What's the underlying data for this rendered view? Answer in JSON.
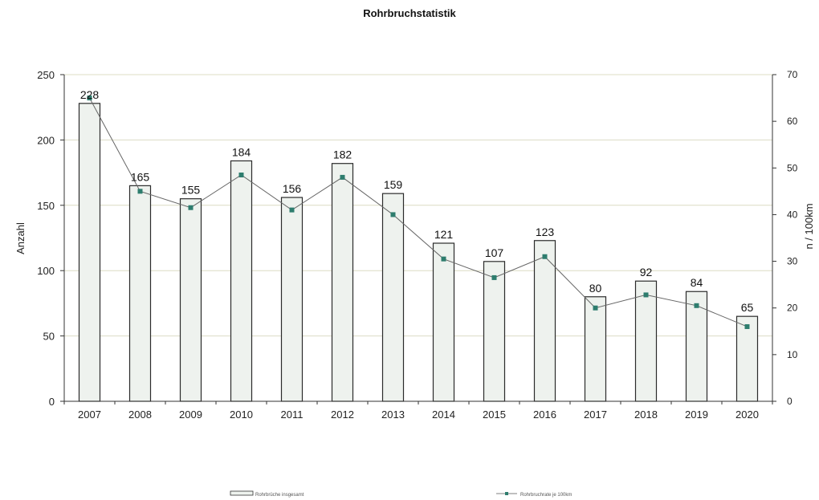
{
  "chart_data": {
    "type": "bar",
    "title": "Rohrbruchstatistik",
    "categories": [
      "2007",
      "2008",
      "2009",
      "2010",
      "2011",
      "2012",
      "2013",
      "2014",
      "2015",
      "2016",
      "2017",
      "2018",
      "2019",
      "2020"
    ],
    "series": [
      {
        "name": "Rohrbrüche insgesamt",
        "type": "bar",
        "axis": "left",
        "values": [
          228,
          165,
          155,
          184,
          156,
          182,
          159,
          121,
          107,
          123,
          80,
          92,
          84,
          65
        ],
        "color": "#eef2ee"
      },
      {
        "name": "Rohrbruchrate je 100km",
        "type": "line",
        "axis": "right",
        "values": [
          65,
          45,
          41.5,
          48.5,
          41,
          48,
          40,
          30.5,
          26.5,
          31,
          20,
          22.8,
          20.5,
          16
        ],
        "color": "#2e7d6e"
      }
    ],
    "ylabel": "Anzahl",
    "ylabel_right": "n / 100km",
    "ylim": [
      0,
      250
    ],
    "ylim_right": [
      0,
      70
    ],
    "yticks": [
      0,
      50,
      100,
      150,
      200,
      250
    ],
    "yticks_right": [
      0,
      10,
      20,
      30,
      40,
      50,
      60,
      70
    ],
    "grid": true,
    "legend_position": "bottom"
  }
}
